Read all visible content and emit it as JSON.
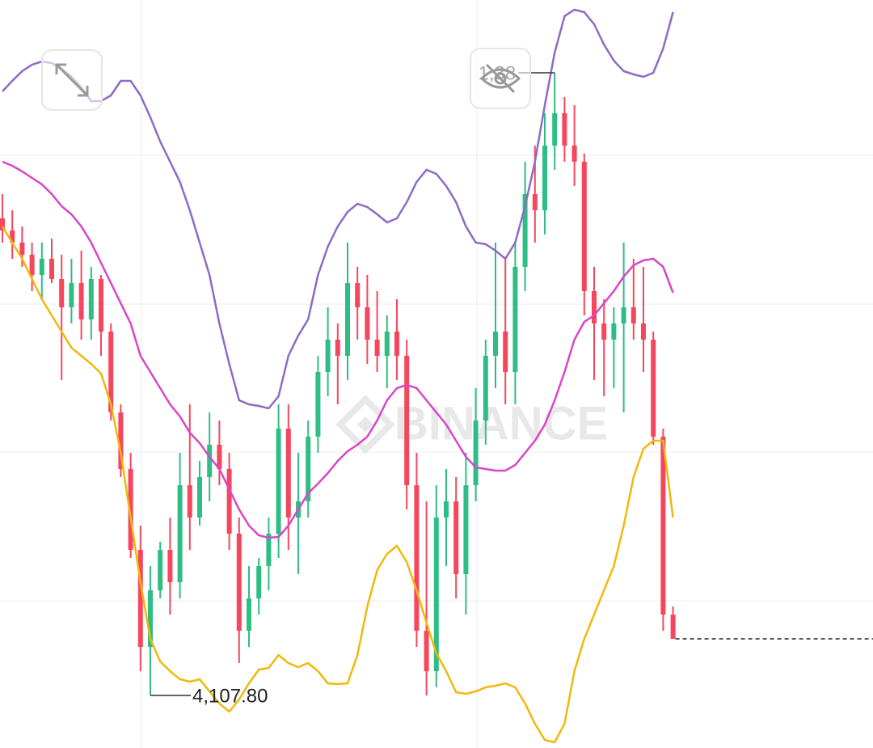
{
  "chart_data": {
    "type": "candlestick",
    "watermark": "BINANCE",
    "high_label": "1,38",
    "low_label": "4,107.80",
    "up_color": "#2ebd85",
    "down_color": "#f6465d",
    "ylim": [
      925,
      0
    ],
    "yticks": [
      192,
      376,
      559,
      743
    ],
    "grid": true,
    "ohlc": [
      [
        270,
        240,
        300,
        285
      ],
      [
        285,
        260,
        320,
        300
      ],
      [
        300,
        280,
        330,
        315
      ],
      [
        315,
        300,
        360,
        340
      ],
      [
        340,
        300,
        370,
        320
      ],
      [
        320,
        295,
        350,
        345
      ],
      [
        345,
        315,
        470,
        380
      ],
      [
        380,
        320,
        400,
        350
      ],
      [
        350,
        310,
        420,
        395
      ],
      [
        395,
        330,
        420,
        345
      ],
      [
        345,
        340,
        440,
        410
      ],
      [
        410,
        400,
        520,
        510
      ],
      [
        510,
        500,
        590,
        580
      ],
      [
        580,
        560,
        690,
        680
      ],
      [
        680,
        650,
        830,
        800
      ],
      [
        800,
        700,
        860,
        730
      ],
      [
        730,
        670,
        740,
        680
      ],
      [
        680,
        640,
        760,
        720
      ],
      [
        720,
        560,
        740,
        600
      ],
      [
        600,
        500,
        680,
        640
      ],
      [
        640,
        570,
        650,
        590
      ],
      [
        590,
        510,
        620,
        550
      ],
      [
        550,
        520,
        600,
        580
      ],
      [
        580,
        560,
        680,
        660
      ],
      [
        660,
        640,
        820,
        780
      ],
      [
        780,
        700,
        800,
        740
      ],
      [
        740,
        690,
        760,
        700
      ],
      [
        700,
        640,
        730,
        660
      ],
      [
        660,
        500,
        690,
        530
      ],
      [
        530,
        500,
        680,
        640
      ],
      [
        640,
        560,
        710,
        620
      ],
      [
        620,
        520,
        640,
        540
      ],
      [
        540,
        440,
        560,
        460
      ],
      [
        460,
        380,
        490,
        420
      ],
      [
        420,
        400,
        500,
        440
      ],
      [
        440,
        300,
        470,
        350
      ],
      [
        350,
        330,
        420,
        380
      ],
      [
        380,
        340,
        450,
        420
      ],
      [
        420,
        360,
        460,
        440
      ],
      [
        440,
        390,
        480,
        410
      ],
      [
        410,
        370,
        470,
        440
      ],
      [
        440,
        420,
        630,
        600
      ],
      [
        600,
        560,
        800,
        780
      ],
      [
        780,
        620,
        860,
        830
      ],
      [
        830,
        600,
        850,
        640
      ],
      [
        640,
        580,
        700,
        620
      ],
      [
        620,
        590,
        740,
        710
      ],
      [
        710,
        560,
        760,
        600
      ],
      [
        600,
        480,
        620,
        520
      ],
      [
        520,
        420,
        550,
        440
      ],
      [
        440,
        300,
        480,
        410
      ],
      [
        410,
        320,
        500,
        460
      ],
      [
        460,
        300,
        500,
        330
      ],
      [
        330,
        200,
        360,
        240
      ],
      [
        240,
        180,
        300,
        260
      ],
      [
        260,
        140,
        290,
        180
      ],
      [
        180,
        90,
        210,
        140
      ],
      [
        140,
        120,
        200,
        180
      ],
      [
        180,
        130,
        230,
        200
      ],
      [
        200,
        190,
        390,
        360
      ],
      [
        360,
        330,
        470,
        400
      ],
      [
        400,
        370,
        490,
        420
      ],
      [
        420,
        380,
        480,
        400
      ],
      [
        400,
        300,
        510,
        380
      ],
      [
        380,
        320,
        420,
        400
      ],
      [
        400,
        330,
        460,
        420
      ],
      [
        420,
        410,
        550,
        540
      ],
      [
        540,
        530,
        780,
        760
      ],
      [
        760,
        750,
        790,
        790
      ]
    ],
    "lines": [
      {
        "color": "#f0b90b",
        "values": [
          280,
          300,
          320,
          345,
          370,
          390,
          410,
          430,
          440,
          450,
          462,
          500,
          560,
          640,
          720,
          790,
          818,
          830,
          840,
          843,
          840,
          855,
          870,
          880,
          865,
          845,
          828,
          826,
          810,
          820,
          825,
          820,
          830,
          845,
          846,
          845,
          810,
          750,
          705,
          685,
          675,
          695,
          730,
          770,
          808,
          830,
          856,
          858,
          855,
          850,
          848,
          845,
          850,
          870,
          895,
          915,
          918,
          895,
          830,
          790,
          760,
          730,
          700,
          650,
          590,
          555,
          545,
          545,
          640
        ]
      },
      {
        "color": "#d946c8",
        "values": [
          200,
          205,
          212,
          220,
          228,
          240,
          255,
          265,
          280,
          300,
          325,
          350,
          375,
          400,
          440,
          460,
          480,
          500,
          515,
          535,
          548,
          565,
          580,
          605,
          630,
          650,
          662,
          665,
          664,
          650,
          630,
          610,
          598,
          585,
          570,
          558,
          550,
          540,
          520,
          495,
          480,
          476,
          480,
          495,
          510,
          525,
          545,
          565,
          578,
          580,
          582,
          582,
          575,
          560,
          545,
          525,
          495,
          460,
          420,
          398,
          390,
          375,
          360,
          342,
          328,
          322,
          320,
          330,
          362
        ]
      },
      {
        "color": "#8e6bc4",
        "values": [
          113,
          100,
          88,
          80,
          76,
          78,
          85,
          95,
          108,
          125,
          125,
          118,
          100,
          100,
          118,
          145,
          175,
          200,
          225,
          260,
          300,
          340,
          400,
          450,
          495,
          500,
          502,
          505,
          490,
          440,
          415,
          395,
          340,
          305,
          280,
          262,
          252,
          256,
          265,
          275,
          270,
          250,
          225,
          210,
          215,
          230,
          250,
          280,
          300,
          302,
          310,
          320,
          300,
          255,
          200,
          130,
          65,
          20,
          12,
          15,
          30,
          55,
          75,
          88,
          92,
          95,
          90,
          60,
          15
        ]
      }
    ]
  }
}
